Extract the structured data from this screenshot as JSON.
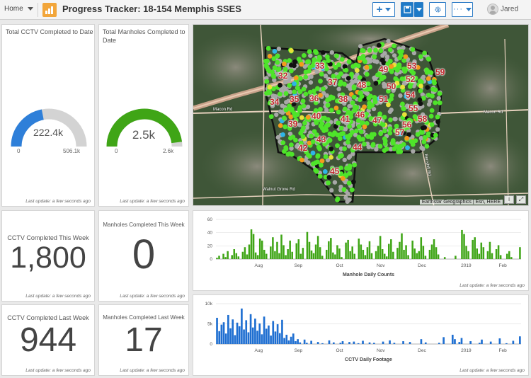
{
  "header": {
    "home_label": "Home",
    "title": "Progress Tracker: 18-154 Memphis SSES",
    "user_name": "Jared"
  },
  "cctv_total": {
    "title": "Total CCTV Completed to Date",
    "value_label": "222.4k",
    "min_label": "0",
    "max_label": "506.1k",
    "fraction": 0.4395,
    "color": "#2e7fd9",
    "last_update": "Last update: a few seconds ago"
  },
  "manholes_total": {
    "title": "Total Manholes Completed to Date",
    "value_label": "2.5k",
    "min_label": "0",
    "max_label": "2.6k",
    "fraction": 0.96,
    "color": "#3fa516",
    "last_update": "Last update: a few seconds ago"
  },
  "cctv_this_week": {
    "title": "CCTV Completed This Week",
    "value": "1,800",
    "last_update": "Last update: a few seconds ago"
  },
  "manholes_this_week": {
    "title": "Manholes Completed This Week",
    "value": "0",
    "last_update": "Last update: a few seconds ago"
  },
  "cctv_last_week": {
    "title": "CCTV Completed Last Week",
    "value": "944",
    "last_update": "Last update: a few seconds ago"
  },
  "manholes_last_week": {
    "title": "Manholes Completed Last Week",
    "value": "17",
    "last_update": "Last update: a few seconds ago"
  },
  "map": {
    "attribution": "Earthstar Geographics | Esri, HERE",
    "area_labels": [
      "32",
      "33",
      "34",
      "35",
      "36",
      "37",
      "38",
      "39",
      "40",
      "41",
      "42",
      "43",
      "44",
      "45",
      "46",
      "47",
      "48",
      "49",
      "50",
      "51",
      "52",
      "53",
      "54",
      "55",
      "56",
      "57",
      "58",
      "59"
    ],
    "road_labels": [
      "Walnut Grove Rd",
      "Macon Rd",
      "Macon Rd",
      "Berryhill Rd"
    ],
    "last_update": "Last update: a few seconds ago"
  },
  "chart_data": [
    {
      "type": "bar",
      "title": "Manhole Daily Counts",
      "xlabel": "Manhole Daily Counts",
      "ylabel": "",
      "ylim": [
        0,
        60
      ],
      "y_ticks": [
        "0",
        "20",
        "40",
        "60"
      ],
      "x_tick_labels": [
        "Aug",
        "Sep",
        "Oct",
        "Nov",
        "Dec",
        "2019",
        "Feb"
      ],
      "color": "#3fa516",
      "values": [
        2,
        5,
        0,
        8,
        3,
        12,
        0,
        6,
        15,
        9,
        4,
        0,
        11,
        18,
        7,
        22,
        45,
        38,
        10,
        6,
        31,
        28,
        14,
        8,
        0,
        19,
        33,
        12,
        26,
        9,
        37,
        21,
        6,
        15,
        28,
        11,
        0,
        24,
        30,
        8,
        17,
        0,
        41,
        26,
        13,
        9,
        22,
        35,
        18,
        5,
        0,
        14,
        27,
        32,
        10,
        7,
        21,
        16,
        3,
        0,
        25,
        29,
        12,
        19,
        8,
        0,
        31,
        22,
        14,
        6,
        18,
        27,
        9,
        0,
        12,
        20,
        35,
        15,
        8,
        4,
        23,
        30,
        11,
        0,
        17,
        26,
        39,
        14,
        21,
        6,
        0,
        28,
        16,
        9,
        12,
        33,
        20,
        5,
        0,
        14,
        22,
        30,
        18,
        7,
        0,
        0,
        3,
        0,
        0,
        0,
        0,
        5,
        0,
        0,
        44,
        38,
        20,
        12,
        0,
        29,
        33,
        16,
        8,
        25,
        18,
        0,
        12,
        26,
        9,
        0,
        15,
        21,
        6,
        0,
        0,
        8,
        12,
        3,
        0,
        0,
        0,
        18
      ],
      "last_update": "Last update: a few seconds ago"
    },
    {
      "type": "bar",
      "title": "CCTV Daily Footage",
      "xlabel": "CCTV Daily Footage",
      "ylabel": "",
      "ylim": [
        0,
        10000
      ],
      "y_ticks": [
        "0",
        "5k",
        "10k"
      ],
      "x_tick_labels": [
        "Aug",
        "Sep",
        "Oct",
        "Nov",
        "Dec",
        "2019",
        "Feb"
      ],
      "color": "#1f6fd1",
      "values": [
        6500,
        3200,
        4800,
        5400,
        2600,
        7200,
        3900,
        6100,
        2200,
        5300,
        4400,
        8800,
        3600,
        5900,
        2900,
        7400,
        4100,
        6300,
        3300,
        5100,
        2400,
        6800,
        3800,
        4600,
        2100,
        5700,
        3100,
        4900,
        2700,
        6000,
        1500,
        2300,
        900,
        1800,
        2600,
        700,
        1200,
        400,
        0,
        1100,
        300,
        0,
        800,
        0,
        0,
        500,
        0,
        200,
        0,
        0,
        900,
        0,
        400,
        0,
        0,
        300,
        700,
        0,
        0,
        500,
        0,
        600,
        0,
        200,
        0,
        800,
        0,
        0,
        400,
        0,
        300,
        0,
        0,
        0,
        600,
        0,
        0,
        900,
        0,
        300,
        0,
        0,
        0,
        700,
        0,
        0,
        500,
        0,
        0,
        0,
        0,
        1200,
        0,
        400,
        0,
        0,
        0,
        0,
        0,
        300,
        0,
        1700,
        0,
        0,
        0,
        2300,
        1200,
        0,
        500,
        1500,
        0,
        0,
        0,
        700,
        0,
        0,
        0,
        300,
        1100,
        0,
        0,
        0,
        600,
        0,
        0,
        0,
        1400,
        0,
        0,
        200,
        0,
        0,
        800,
        0,
        0,
        1900
      ],
      "last_update": "Last update: a few seconds ago"
    }
  ]
}
